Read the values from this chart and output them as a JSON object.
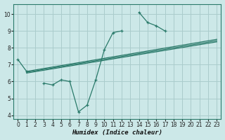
{
  "xlabel": "Humidex (Indice chaleur)",
  "background_color": "#cce8e8",
  "grid_color": "#aacccc",
  "line_color": "#2a7a6a",
  "xlim": [
    -0.5,
    23.5
  ],
  "ylim": [
    3.8,
    10.6
  ],
  "xticks": [
    0,
    1,
    2,
    3,
    4,
    5,
    6,
    7,
    8,
    9,
    10,
    11,
    12,
    13,
    14,
    15,
    16,
    17,
    18,
    19,
    20,
    21,
    22,
    23
  ],
  "yticks": [
    4,
    5,
    6,
    7,
    8,
    9,
    10
  ],
  "series_marker": {
    "segments": [
      {
        "x": [
          0,
          1
        ],
        "y": [
          7.3,
          6.6
        ]
      },
      {
        "x": [
          3,
          4,
          5,
          6,
          7,
          8,
          9,
          10,
          11,
          12
        ],
        "y": [
          5.9,
          5.8,
          6.1,
          6.0,
          4.2,
          4.6,
          6.1,
          7.9,
          8.9,
          9.0
        ]
      },
      {
        "x": [
          14,
          15,
          16,
          17
        ],
        "y": [
          10.1,
          9.5,
          9.3,
          9.0
        ]
      }
    ]
  },
  "series_lines": [
    {
      "x": [
        1,
        23
      ],
      "y": [
        6.6,
        8.5
      ]
    },
    {
      "x": [
        1,
        23
      ],
      "y": [
        6.55,
        8.42
      ]
    },
    {
      "x": [
        1,
        23
      ],
      "y": [
        6.5,
        8.35
      ]
    }
  ]
}
